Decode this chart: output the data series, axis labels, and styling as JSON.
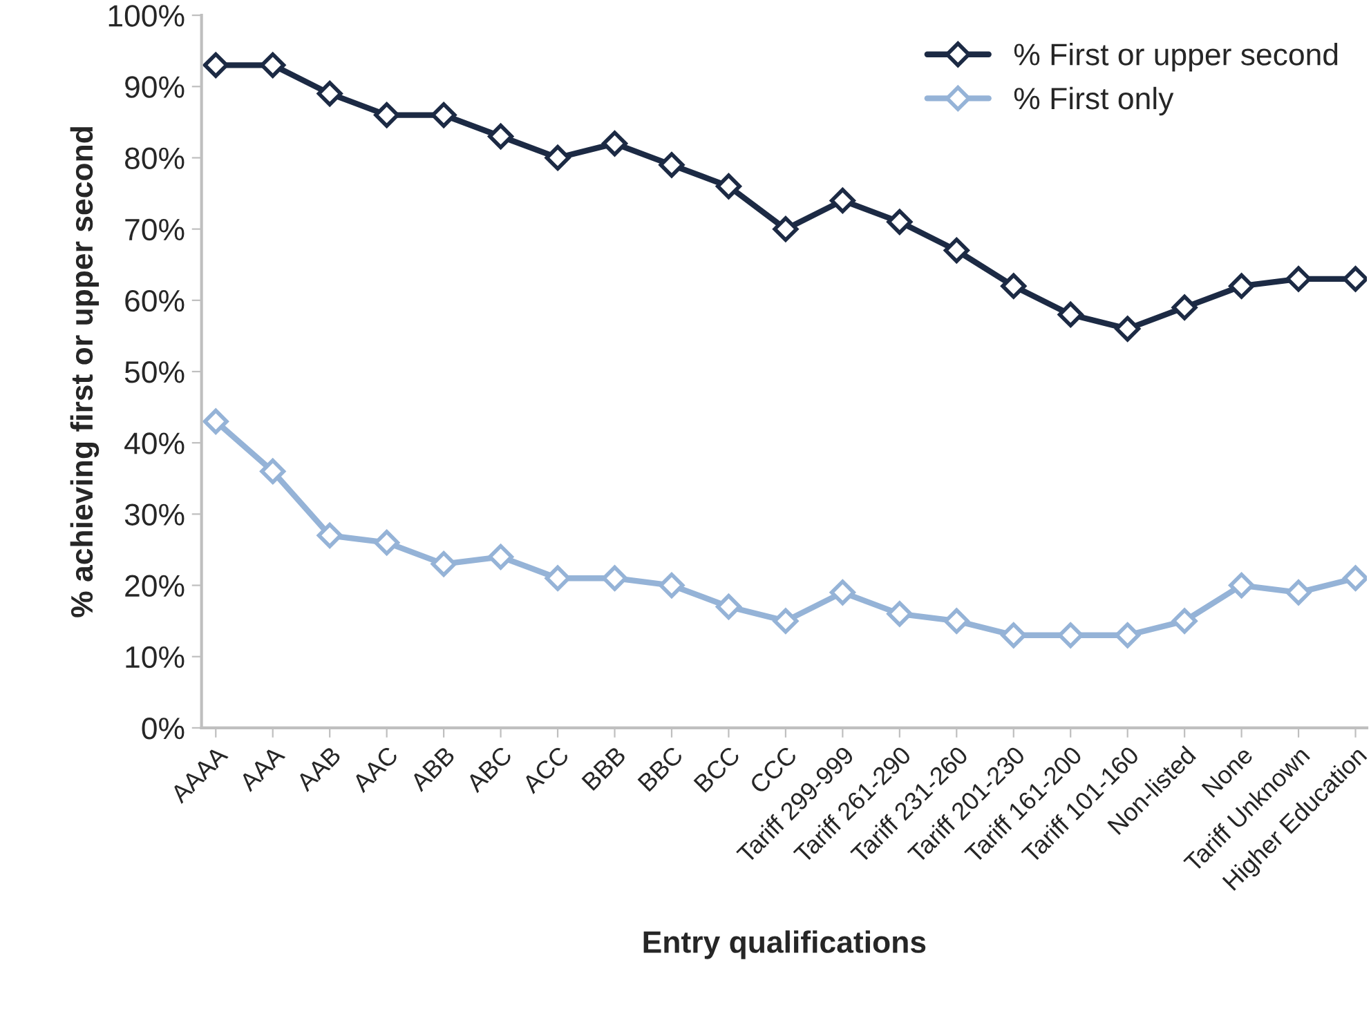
{
  "chart_data": {
    "type": "line",
    "xlabel": "Entry qualifications",
    "ylabel": "% achieving first or upper second",
    "categories": [
      "AAAA",
      "AAA",
      "AAB",
      "AAC",
      "ABB",
      "ABC",
      "ACC",
      "BBB",
      "BBC",
      "BCC",
      "CCC",
      "Tariff 299-999",
      "Tariff 261-290",
      "Tariff 231-260",
      "Tariff 201-230",
      "Tariff 161-200",
      "Tariff 101-160",
      "Non-listed",
      "None",
      "Tariff Unknown",
      "Higher Education"
    ],
    "series": [
      {
        "name": "% First or upper second",
        "color": "#1c2a44",
        "values": [
          93,
          93,
          89,
          86,
          86,
          83,
          80,
          82,
          79,
          76,
          70,
          74,
          71,
          67,
          62,
          58,
          56,
          59,
          62,
          63,
          63
        ]
      },
      {
        "name": "% First only",
        "color": "#95b3d7",
        "values": [
          43,
          36,
          27,
          26,
          23,
          24,
          21,
          21,
          20,
          17,
          15,
          19,
          16,
          15,
          13,
          13,
          13,
          15,
          20,
          19,
          21
        ]
      }
    ],
    "ylim": [
      0,
      100
    ],
    "yticks": [
      {
        "value": 0,
        "label": "0%"
      },
      {
        "value": 10,
        "label": "10%"
      },
      {
        "value": 20,
        "label": "20%"
      },
      {
        "value": 30,
        "label": "30%"
      },
      {
        "value": 40,
        "label": "40%"
      },
      {
        "value": 50,
        "label": "50%"
      },
      {
        "value": 60,
        "label": "60%"
      },
      {
        "value": 70,
        "label": "70%"
      },
      {
        "value": 80,
        "label": "80%"
      },
      {
        "value": 90,
        "label": "90%"
      },
      {
        "value": 100,
        "label": "100%"
      }
    ],
    "grid": false,
    "legend": "top right",
    "marker": "diamond",
    "line_style": "solid"
  }
}
